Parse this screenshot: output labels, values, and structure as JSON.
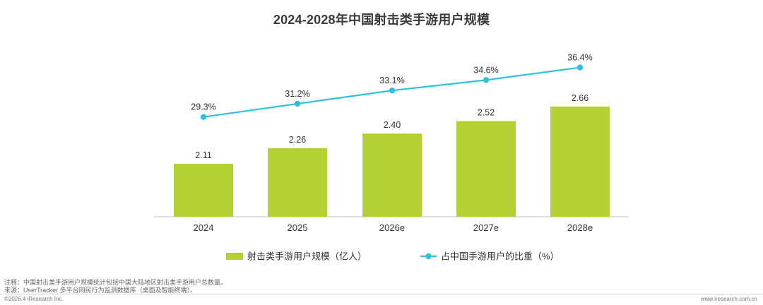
{
  "page": {
    "title": "2024-2028年中国射击类手游用户规模",
    "note_line1": "注释：中国射击类手游用户规模统计包括中国大陆地区射击类手游用户总数量。",
    "note_line2": "来源：UserTracker 多平台网民行为监测数据库（桌面及智能终端）。",
    "copyright": "©2026.4 iResearch Inc.",
    "website": "www.iresearch.com.cn"
  },
  "colors": {
    "bar": "#B3D133",
    "line": "#2DC2DB",
    "axis": "#bfbfbf"
  },
  "chart_data": {
    "type": "bar",
    "title": "2024-2028年中国射击类手游用户规模",
    "categories": [
      "2024",
      "2025",
      "2026e",
      "2027e",
      "2028e"
    ],
    "series": [
      {
        "name": "射击类手游用户规模（亿人）",
        "type": "bar",
        "values": [
          2.11,
          2.26,
          2.4,
          2.52,
          2.66
        ],
        "labels": [
          "2.11",
          "2.26",
          "2.40",
          "2.52",
          "2.66"
        ]
      },
      {
        "name": "占中国手游用户的比重（%）",
        "type": "line",
        "values": [
          29.3,
          31.2,
          33.1,
          34.6,
          36.4
        ],
        "labels": [
          "29.3%",
          "31.2%",
          "33.1%",
          "34.6%",
          "36.4%"
        ]
      }
    ],
    "bar_axis_range": [
      1.6,
      2.7
    ],
    "line_axis_range": [
      15,
      40
    ],
    "legend_position": "bottom-center",
    "grid": false
  }
}
